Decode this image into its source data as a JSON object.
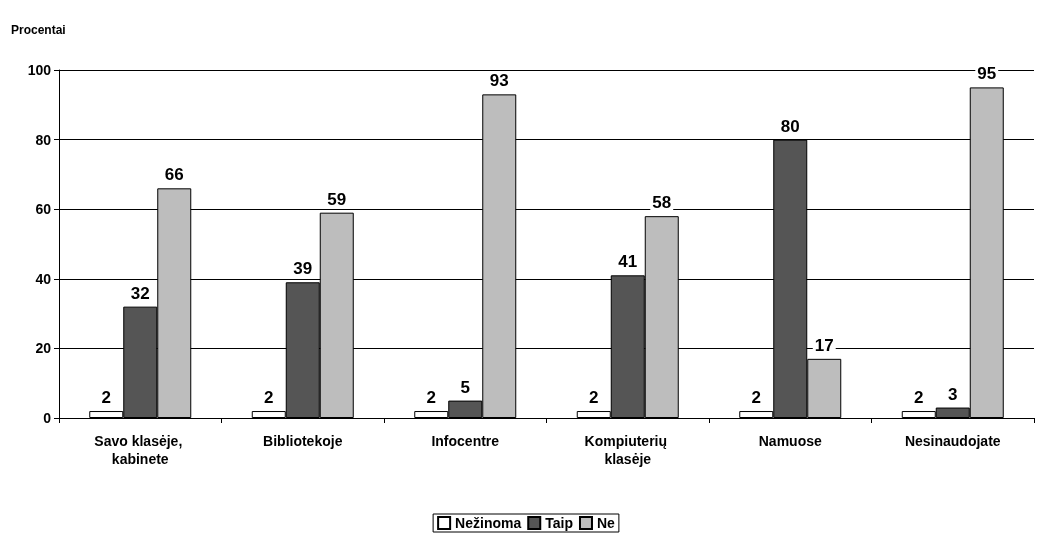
{
  "chart_data": {
    "type": "bar",
    "ylabel": "Procentai",
    "categories": [
      "Savo klasėje, kabinete",
      "Bibliotekoje",
      "Infocentre",
      "Kompiuterių klasėje",
      "Namuose",
      "Nesinaudojate"
    ],
    "series": [
      {
        "name": "Nežinoma",
        "color": "#ffffff",
        "values": [
          2,
          2,
          2,
          2,
          2,
          2
        ]
      },
      {
        "name": "Taip",
        "color": "#555555",
        "values": [
          32,
          39,
          5,
          41,
          80,
          3
        ]
      },
      {
        "name": "Ne",
        "color": "#bdbdbd",
        "values": [
          66,
          59,
          93,
          58,
          17,
          95
        ]
      }
    ],
    "ylim": [
      0,
      100
    ],
    "yticks": [
      0,
      20,
      40,
      60,
      80,
      100
    ],
    "grid": "y",
    "legend": "bottom",
    "data_labels": true
  }
}
